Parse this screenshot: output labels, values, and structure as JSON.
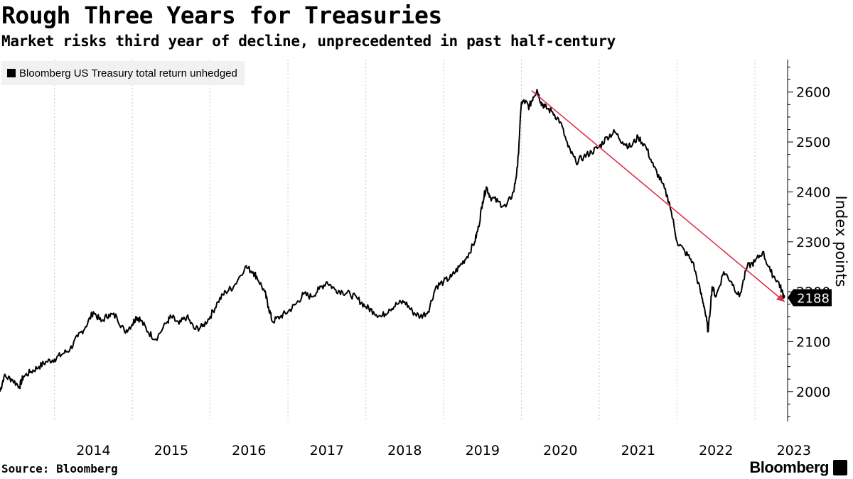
{
  "header": {
    "title": "Rough Three Years for Treasuries",
    "subtitle": "Market risks third year of decline, unprecedented in past half-century"
  },
  "footer": {
    "source": "Source: Bloomberg",
    "brand": "Bloomberg"
  },
  "colors": {
    "series": "#000000",
    "trend": "#e0304a",
    "grid": "#c8c8c8",
    "legend_bg": "#f1f1f1"
  },
  "chart_data": {
    "type": "line",
    "title": "Rough Three Years for Treasuries",
    "subtitle": "Market risks third year of decline, unprecedented in past half-century",
    "ylabel": "Index points",
    "xlabel": "",
    "ylim": [
      1940,
      2665
    ],
    "xlim": [
      2013.3,
      2023.42
    ],
    "yticks": [
      2000,
      2100,
      2200,
      2300,
      2400,
      2500,
      2600
    ],
    "xticks": [
      "2014",
      "2015",
      "2016",
      "2017",
      "2018",
      "2019",
      "2020",
      "2021",
      "2022",
      "2023"
    ],
    "grid": true,
    "legend_position": "top-left",
    "last_value_label": "2188",
    "series": [
      {
        "name": "Bloomberg US Treasury total return unhedged",
        "x": [
          2013.3,
          2013.35,
          2013.45,
          2013.55,
          2013.6,
          2013.7,
          2013.8,
          2013.9,
          2014.0,
          2014.1,
          2014.2,
          2014.3,
          2014.4,
          2014.5,
          2014.6,
          2014.7,
          2014.8,
          2014.9,
          2015.0,
          2015.05,
          2015.1,
          2015.2,
          2015.3,
          2015.45,
          2015.5,
          2015.6,
          2015.7,
          2015.8,
          2015.9,
          2016.0,
          2016.1,
          2016.2,
          2016.3,
          2016.45,
          2016.55,
          2016.6,
          2016.7,
          2016.75,
          2016.8,
          2016.9,
          2017.0,
          2017.1,
          2017.2,
          2017.3,
          2017.4,
          2017.5,
          2017.6,
          2017.7,
          2017.8,
          2017.9,
          2018.0,
          2018.1,
          2018.2,
          2018.3,
          2018.4,
          2018.5,
          2018.6,
          2018.7,
          2018.8,
          2018.9,
          2019.0,
          2019.1,
          2019.2,
          2019.3,
          2019.4,
          2019.45,
          2019.5,
          2019.55,
          2019.6,
          2019.7,
          2019.8,
          2019.9,
          2019.95,
          2020.0,
          2020.05,
          2020.1,
          2020.15,
          2020.2,
          2020.25,
          2020.3,
          2020.4,
          2020.5,
          2020.6,
          2020.7,
          2020.8,
          2020.9,
          2021.0,
          2021.1,
          2021.2,
          2021.3,
          2021.4,
          2021.5,
          2021.6,
          2021.7,
          2021.8,
          2021.9,
          2022.0,
          2022.1,
          2022.2,
          2022.3,
          2022.35,
          2022.4,
          2022.45,
          2022.5,
          2022.6,
          2022.7,
          2022.8,
          2022.9,
          2023.0,
          2023.1,
          2023.2,
          2023.3,
          2023.35,
          2023.38
        ],
        "values": [
          2000,
          2030,
          2025,
          2010,
          2030,
          2040,
          2050,
          2060,
          2065,
          2075,
          2085,
          2110,
          2130,
          2160,
          2140,
          2155,
          2150,
          2120,
          2135,
          2150,
          2145,
          2120,
          2105,
          2140,
          2150,
          2135,
          2150,
          2125,
          2130,
          2150,
          2180,
          2200,
          2210,
          2250,
          2240,
          2230,
          2200,
          2170,
          2140,
          2150,
          2160,
          2175,
          2195,
          2190,
          2205,
          2220,
          2205,
          2200,
          2195,
          2185,
          2170,
          2160,
          2150,
          2165,
          2175,
          2180,
          2160,
          2150,
          2160,
          2210,
          2220,
          2230,
          2250,
          2270,
          2300,
          2330,
          2380,
          2410,
          2390,
          2380,
          2370,
          2400,
          2450,
          2580,
          2580,
          2570,
          2590,
          2605,
          2580,
          2570,
          2560,
          2540,
          2490,
          2460,
          2470,
          2480,
          2490,
          2510,
          2520,
          2500,
          2490,
          2510,
          2490,
          2450,
          2420,
          2380,
          2300,
          2280,
          2260,
          2200,
          2170,
          2120,
          2210,
          2190,
          2240,
          2220,
          2190,
          2250,
          2260,
          2280,
          2240,
          2220,
          2200,
          2188
        ]
      }
    ],
    "trendline": {
      "x": [
        2020.13,
        2023.38
      ],
      "y": [
        2603,
        2180
      ]
    }
  }
}
